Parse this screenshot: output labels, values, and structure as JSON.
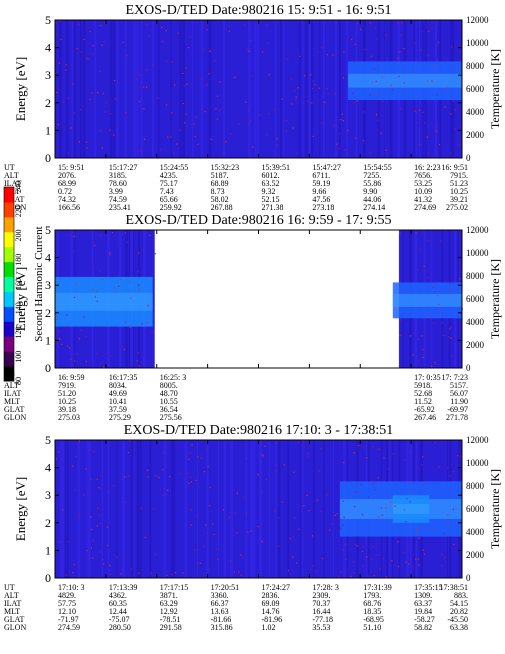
{
  "chart_data": [
    {
      "type": "heatmap",
      "title": "EXOS-D/TED   Date:980216  15: 9:51 - 16: 9:51",
      "ylabel": "Energy [eV]",
      "y2label": "Temperature [K]",
      "ylim": [
        0,
        5
      ],
      "yticks": [
        "0",
        "1",
        "2",
        "3",
        "4",
        "5"
      ],
      "y2lim": [
        0,
        12000
      ],
      "y2ticks": [
        "0",
        "2000",
        "4000",
        "6000",
        "8000",
        "10000",
        "12000"
      ],
      "data_regions": [
        {
          "t_start": 0.72,
          "t_end": 1.0,
          "e_low": 2.1,
          "e_high": 3.5,
          "level": "medium"
        }
      ],
      "ephemeris": {
        "rows": [
          {
            "label": "UT",
            "values": [
              "15: 9:51",
              "15:17:27",
              "15:24:55",
              "15:32:23",
              "15:39:51",
              "15:47:27",
              "15:54:55",
              "16: 2:23",
              "16: 9:51"
            ]
          },
          {
            "label": "ALT",
            "values": [
              "2076.",
              "3185.",
              "4235.",
              "5187.",
              "6012.",
              "6711.",
              "7255.",
              "7656.",
              "7915."
            ]
          },
          {
            "label": "ILAT",
            "values": [
              "68.99",
              "78.60",
              "75.17",
              "68.89",
              "63.52",
              "59.19",
              "55.86",
              "53.25",
              "51.23"
            ]
          },
          {
            "label": "MLT",
            "values": [
              "0.72",
              "3.99",
              "7.43",
              "8.73",
              "9.32",
              "9.66",
              "9.90",
              "10.09",
              "10.25"
            ]
          },
          {
            "label": "GLAT",
            "values": [
              "74.32",
              "74.59",
              "65.66",
              "58.02",
              "52.15",
              "47.56",
              "44.06",
              "41.32",
              "39.21"
            ]
          },
          {
            "label": "GLON",
            "values": [
              "166.56",
              "235.41",
              "259.92",
              "267.88",
              "271.38",
              "273.18",
              "274.14",
              "274.69",
              "275.02"
            ]
          }
        ]
      }
    },
    {
      "type": "heatmap",
      "title": "EXOS-D/TED   Date:980216  16: 9:59 - 17: 9:55",
      "ylabel": "Energy [eV]",
      "y2label": "Temperature [K]",
      "ylim": [
        0,
        5
      ],
      "yticks": [
        "0",
        "1",
        "2",
        "3",
        "4",
        "5"
      ],
      "y2lim": [
        0,
        12000
      ],
      "y2ticks": [
        "0",
        "2000",
        "4000",
        "6000",
        "8000",
        "10000",
        "12000"
      ],
      "data_regions": [
        {
          "t_start": 0.0,
          "t_end": 0.24,
          "e_low": 1.5,
          "e_high": 3.3,
          "level": "high"
        },
        {
          "t_start": 0.83,
          "t_end": 1.0,
          "e_low": 1.8,
          "e_high": 3.1,
          "level": "medium"
        }
      ],
      "ephemeris": {
        "rows": [
          {
            "label": "UT",
            "values": [
              "16: 9:59",
              "16:17:35",
              "16:25: 3",
              "",
              "",
              "",
              "",
              "17: 0:35",
              "17: 7:23"
            ]
          },
          {
            "label": "ALT",
            "values": [
              "7919.",
              "8034.",
              "8005.",
              "",
              "",
              "",
              "",
              "5918.",
              "5157."
            ]
          },
          {
            "label": "ILAT",
            "values": [
              "51.20",
              "49.69",
              "48.70",
              "",
              "",
              "",
              "",
              "52.68",
              "56.07"
            ]
          },
          {
            "label": "MLT",
            "values": [
              "10.25",
              "10.41",
              "10.55",
              "",
              "",
              "",
              "",
              "11.52",
              "11.90"
            ]
          },
          {
            "label": "GLAT",
            "values": [
              "39.18",
              "37.59",
              "36.54",
              "",
              "",
              "",
              "",
              "-65.92",
              "-69.97"
            ]
          },
          {
            "label": "GLON",
            "values": [
              "275.03",
              "275.29",
              "275.56",
              "",
              "",
              "",
              "",
              "267.46",
              "271.78"
            ]
          }
        ]
      }
    },
    {
      "type": "heatmap",
      "title": "EXOS-D/TED   Date:980216  17:10: 3 - 17:38:51",
      "ylabel": "Energy [eV]",
      "y2label": "Temperature [K]",
      "ylim": [
        0,
        5
      ],
      "yticks": [
        "0",
        "1",
        "2",
        "3",
        "4",
        "5"
      ],
      "y2lim": [
        0,
        12000
      ],
      "y2ticks": [
        "0",
        "2000",
        "4000",
        "6000",
        "8000",
        "10000",
        "12000"
      ],
      "data_regions": [
        {
          "t_start": 0.7,
          "t_end": 1.0,
          "e_low": 1.5,
          "e_high": 3.5,
          "level": "medium"
        },
        {
          "t_start": 0.83,
          "t_end": 0.92,
          "e_low": 2.0,
          "e_high": 3.0,
          "level": "high"
        }
      ],
      "ephemeris": {
        "rows": [
          {
            "label": "UT",
            "values": [
              "17:10: 3",
              "17:13:39",
              "17:17:15",
              "17:20:51",
              "17:24:27",
              "17:28: 3",
              "17:31:39",
              "17:35:15",
              "17:38:51"
            ]
          },
          {
            "label": "ALT",
            "values": [
              "4829.",
              "4362.",
              "3871.",
              "3360.",
              "2836.",
              "2309.",
              "1793.",
              "1309.",
              "883."
            ]
          },
          {
            "label": "ILAT",
            "values": [
              "57.75",
              "60.35",
              "63.29",
              "66.37",
              "69.09",
              "70.37",
              "68.76",
              "63.37",
              "54.15"
            ]
          },
          {
            "label": "MLT",
            "values": [
              "12.10",
              "12.44",
              "12.92",
              "13.63",
              "14.76",
              "16.44",
              "18.35",
              "19.84",
              "20.82"
            ]
          },
          {
            "label": "GLAT",
            "values": [
              "-71.97",
              "-75.07",
              "-78.51",
              "-81.66",
              "-81.96",
              "-77.18",
              "-68.95",
              "-58.27",
              "-45.50"
            ]
          },
          {
            "label": "GLON",
            "values": [
              "274.59",
              "280.50",
              "291.58",
              "315.86",
              "1.02",
              "35.53",
              "51.10",
              "58.82",
              "63.38"
            ]
          }
        ]
      }
    }
  ],
  "colorbar": {
    "label": "Second Harmonic Current",
    "ticks": [
      "80",
      "100",
      "120",
      "140",
      "160",
      "180",
      "200",
      "220",
      "240"
    ],
    "colors": [
      "#000000",
      "#3a0050",
      "#7a0080",
      "#1a00c8",
      "#0050ff",
      "#00c8ff",
      "#00ffa0",
      "#00e000",
      "#a0ff00",
      "#ffff00",
      "#ffa000",
      "#ff4000",
      "#ff0000"
    ]
  }
}
